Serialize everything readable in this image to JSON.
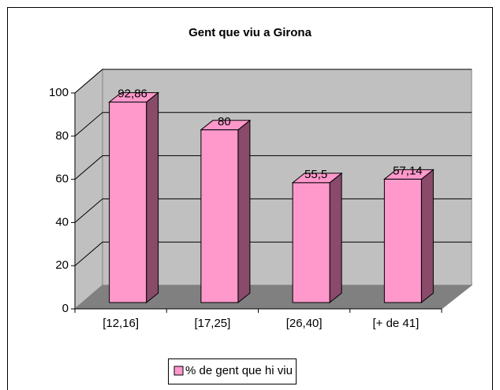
{
  "chart_data": {
    "type": "bar3d",
    "title": "Gent que viu a Girona",
    "categories": [
      "[12,16]",
      "[17,25]",
      "[26,40]",
      "[+ de 41]"
    ],
    "series": [
      {
        "name": "% de gent que hi viu",
        "color": "#ff99cc",
        "values": [
          92.86,
          80,
          55.5,
          57.14
        ],
        "value_labels": [
          "92,86",
          "80",
          "55,5",
          "57,14"
        ]
      }
    ],
    "ylim": [
      0,
      100
    ],
    "yticks": [
      0,
      20,
      40,
      60,
      80,
      100
    ],
    "grid": true,
    "legend": "bottom"
  }
}
